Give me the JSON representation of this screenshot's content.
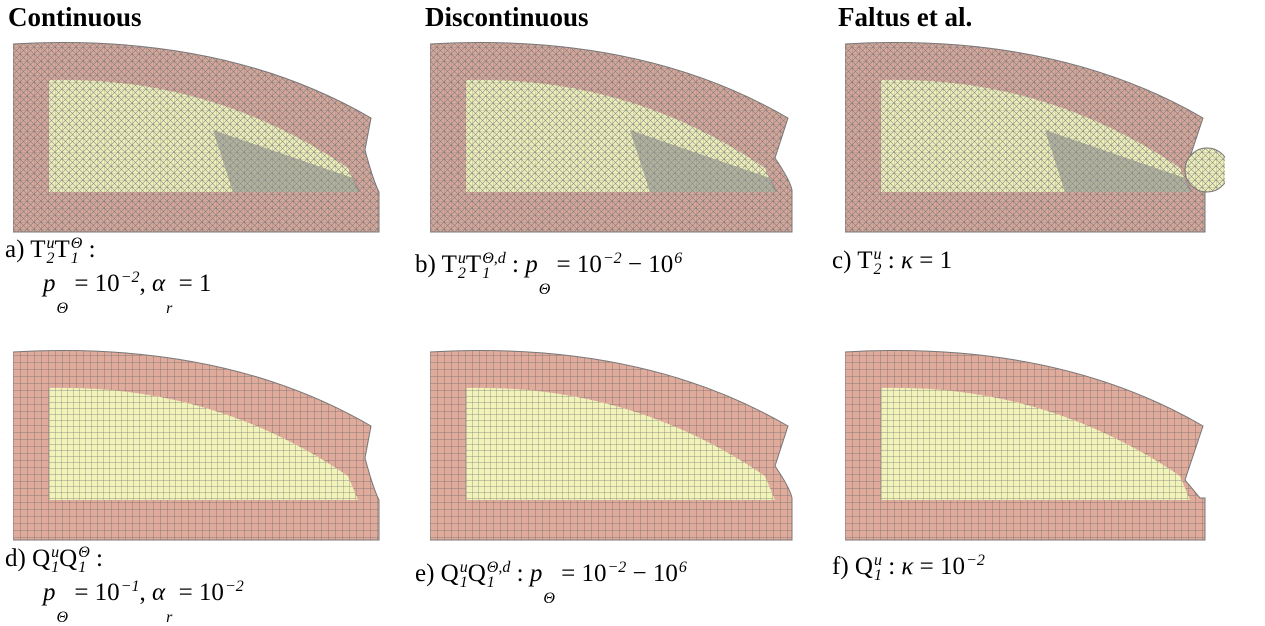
{
  "columns": [
    "Continuous",
    "Discontinuous",
    "Faltus et al."
  ],
  "panels": [
    {
      "caption": [
        [
          {
            "text": "a) "
          },
          {
            "text": "T",
            "sub": "2",
            "sup": "u"
          },
          {
            "text": "T",
            "sub": "1",
            "sup": "Θ"
          },
          {
            "text": " :"
          }
        ],
        [
          {
            "text": "p",
            "sub": "Θ",
            "italic": true
          },
          {
            "text": " = 10",
            "sup": "−2"
          },
          {
            "text": ", "
          },
          {
            "text": "α",
            "sub": "r",
            "italic": true
          },
          {
            "text": " = 1"
          }
        ]
      ]
    },
    {
      "caption": [
        [
          {
            "text": "b) "
          },
          {
            "text": "T",
            "sub": "2",
            "sup": "u"
          },
          {
            "text": "T",
            "sub": "1",
            "sup": "Θ,d"
          },
          {
            "text": " : "
          },
          {
            "text": "p",
            "sub": "Θ",
            "italic": true
          },
          {
            "text": " = 10",
            "sup": "−2"
          },
          {
            "text": " − 10",
            "sup": "6"
          }
        ]
      ]
    },
    {
      "caption": [
        [
          {
            "text": "c) "
          },
          {
            "text": "T",
            "sub": "2",
            "sup": "u"
          },
          {
            "text": " : "
          },
          {
            "text": "κ",
            "italic": true
          },
          {
            "text": " = 1"
          }
        ]
      ]
    },
    {
      "caption": [
        [
          {
            "text": "d) "
          },
          {
            "text": "Q",
            "sub": "1",
            "sup": "u"
          },
          {
            "text": "Q",
            "sub": "1",
            "sup": "Θ"
          },
          {
            "text": " :"
          }
        ],
        [
          {
            "text": "p",
            "sub": "Θ",
            "italic": true
          },
          {
            "text": " = 10",
            "sup": "−1"
          },
          {
            "text": ", "
          },
          {
            "text": "α",
            "sub": "r",
            "italic": true
          },
          {
            "text": " = 10",
            "sup": "−2"
          }
        ]
      ]
    },
    {
      "caption": [
        [
          {
            "text": "e) "
          },
          {
            "text": "Q",
            "sub": "1",
            "sup": "u"
          },
          {
            "text": "Q",
            "sub": "1",
            "sup": "Θ,d"
          },
          {
            "text": " : "
          },
          {
            "text": "p",
            "sub": "Θ",
            "italic": true
          },
          {
            "text": " = 10",
            "sup": "−2"
          },
          {
            "text": " − 10",
            "sup": "6"
          }
        ]
      ]
    },
    {
      "caption": [
        [
          {
            "text": "f) "
          },
          {
            "text": "Q",
            "sub": "1",
            "sup": "u"
          },
          {
            "text": " : "
          },
          {
            "text": "κ",
            "italic": true
          },
          {
            "text": " = 10",
            "sup": "−2"
          }
        ]
      ]
    }
  ]
}
